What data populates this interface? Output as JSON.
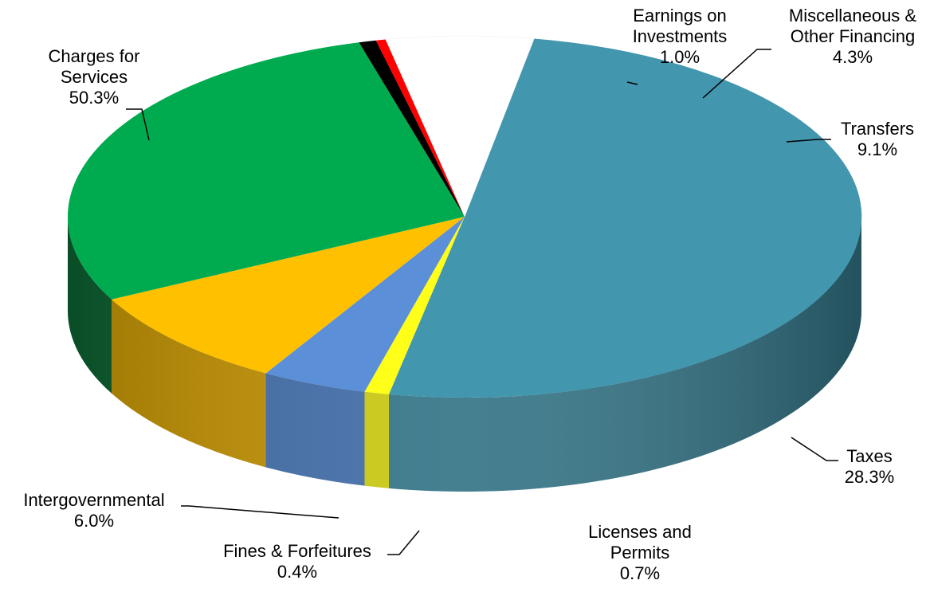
{
  "chart_data": {
    "type": "pie",
    "title": "",
    "slices": [
      {
        "name": "Charges for Services",
        "label_lines": [
          "Charges for",
          "Services"
        ],
        "value": 50.3,
        "pct_label": "50.3%",
        "color": "#4296AE",
        "side_color": "#327486"
      },
      {
        "name": "Earnings on Investments",
        "label_lines": [
          "Earnings on",
          "Investments"
        ],
        "value": 1.0,
        "pct_label": "1.0%",
        "color": "#FFFF1A",
        "side_color": "#C8C810"
      },
      {
        "name": "Miscellaneous & Other Financing",
        "label_lines": [
          "Miscellaneous &",
          "Other Financing"
        ],
        "value": 4.3,
        "pct_label": "4.3%",
        "color": "#5B8FD8",
        "side_color": "#406CA8"
      },
      {
        "name": "Transfers",
        "label_lines": [
          "Transfers"
        ],
        "value": 9.1,
        "pct_label": "9.1%",
        "color": "#FFC000",
        "side_color": "#C09000"
      },
      {
        "name": "Taxes",
        "label_lines": [
          "Taxes"
        ],
        "value": 28.3,
        "pct_label": "28.3%",
        "color": "#00AB4F",
        "side_color": "#0A5E2E"
      },
      {
        "name": "Licenses and Permits",
        "label_lines": [
          "Licenses and",
          "Permits"
        ],
        "value": 0.7,
        "pct_label": "0.7%",
        "color": "#000000",
        "side_color": "#000000"
      },
      {
        "name": "Fines & Forfeitures",
        "label_lines": [
          "Fines & Forfeitures"
        ],
        "value": 0.4,
        "pct_label": "0.4%",
        "color": "#FF0000",
        "side_color": "#B00000"
      },
      {
        "name": "Intergovernmental",
        "label_lines": [
          "Intergovernmental"
        ],
        "value": 6.0,
        "pct_label": "6.0%",
        "color": "#FFFFFF",
        "side_color": "#B8B8B8"
      }
    ],
    "legend": "none",
    "style": "3d-pie"
  }
}
